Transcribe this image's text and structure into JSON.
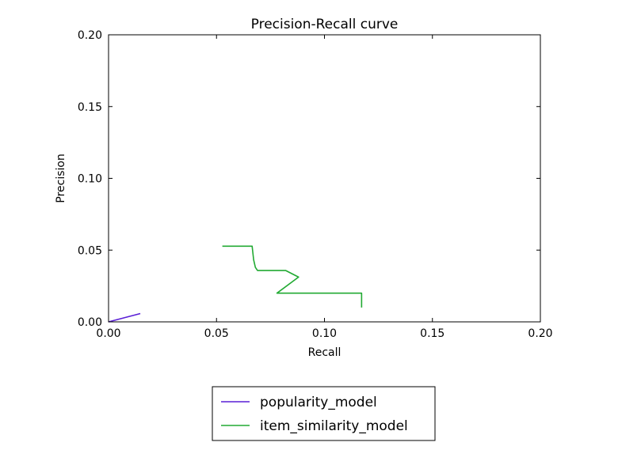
{
  "chart_data": {
    "type": "line",
    "title": "Precision-Recall curve",
    "xlabel": "Recall",
    "ylabel": "Precision",
    "xlim": [
      0.0,
      0.2
    ],
    "ylim": [
      0.0,
      0.2
    ],
    "xticks": [
      "0.00",
      "0.05",
      "0.10",
      "0.15",
      "0.20"
    ],
    "yticks": [
      "0.00",
      "0.05",
      "0.10",
      "0.15",
      "0.20"
    ],
    "grid": false,
    "legend_position": "below plot, centered",
    "series": [
      {
        "name": "popularity_model",
        "color": "#5a1fd6",
        "x": [
          0.0,
          0.0147
        ],
        "y": [
          0.0,
          0.0058
        ]
      },
      {
        "name": "item_similarity_model",
        "color": "#22aa33",
        "x": [
          0.0527,
          0.0665,
          0.0672,
          0.068,
          0.069,
          0.082,
          0.088,
          0.078,
          0.1172,
          0.1172
        ],
        "y": [
          0.0527,
          0.0527,
          0.0432,
          0.038,
          0.0358,
          0.0358,
          0.0312,
          0.02,
          0.02,
          0.01
        ]
      }
    ]
  }
}
